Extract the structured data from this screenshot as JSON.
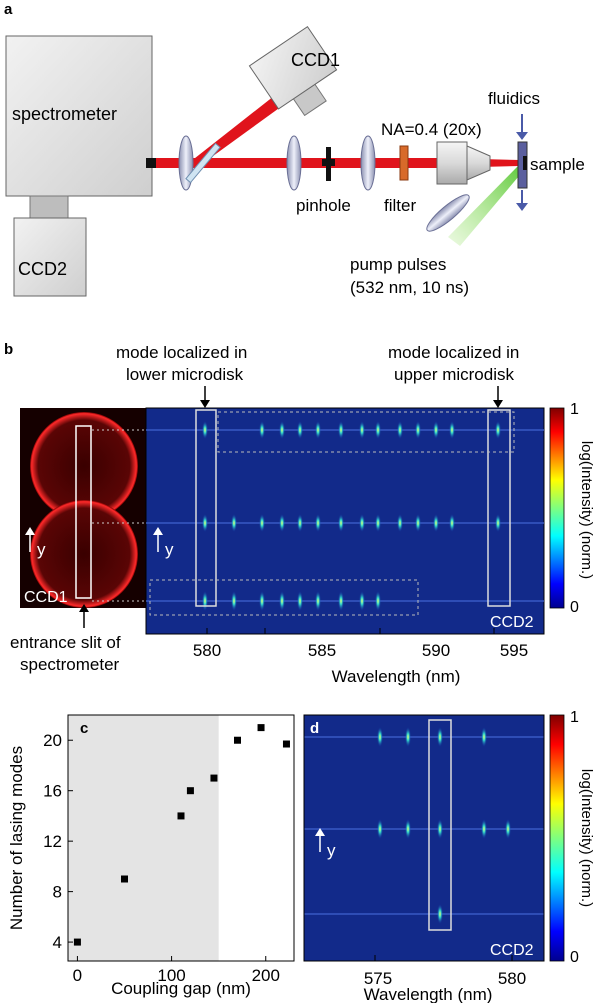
{
  "panel_a": {
    "label": "a",
    "spectrometer": "spectrometer",
    "ccd1": "CCD1",
    "ccd2": "CCD2",
    "fluidics": "fluidics",
    "na": "NA=0.4 (20x)",
    "sample": "sample",
    "pinhole": "pinhole",
    "filter": "filter",
    "pump_line1": "pump pulses",
    "pump_line2": "(532 nm, 10 ns)"
  },
  "panel_b": {
    "label": "b",
    "annot_lower_1": "mode localized in",
    "annot_lower_2": "lower microdisk",
    "annot_upper_1": "mode localized in",
    "annot_upper_2": "upper microdisk",
    "ccd1_label": "CCD1",
    "ccd2_label": "CCD2",
    "y_label": "y",
    "slit_1": "entrance slit of",
    "slit_2": "spectrometer",
    "xlabel": "Wavelength (nm)",
    "xticks": [
      "580",
      "585",
      "590",
      "595"
    ],
    "colorbar_label": "log(Intensity) (norm.)",
    "colorbar_ticks": [
      "1",
      "0"
    ]
  },
  "chart_data": [
    {
      "panel": "c",
      "type": "scatter",
      "xlabel": "Coupling gap (nm)",
      "ylabel": "Number of lasing modes",
      "xticks": [
        "0",
        "100",
        "200"
      ],
      "yticks": [
        "4",
        "8",
        "12",
        "16",
        "20"
      ],
      "xlim": [
        -10,
        230
      ],
      "ylim": [
        2.5,
        22
      ],
      "shaded_region_x": [
        -10,
        150
      ],
      "points": [
        {
          "x": 0,
          "y": 4
        },
        {
          "x": 50,
          "y": 9
        },
        {
          "x": 110,
          "y": 14
        },
        {
          "x": 120,
          "y": 16
        },
        {
          "x": 145,
          "y": 17
        },
        {
          "x": 170,
          "y": 20
        },
        {
          "x": 195,
          "y": 21
        },
        {
          "x": 222,
          "y": 19.7
        }
      ]
    }
  ],
  "panel_c": {
    "label": "c"
  },
  "panel_d": {
    "label": "d",
    "y_label": "y",
    "ccd2_label": "CCD2",
    "xlabel": "Wavelength (nm)",
    "xticks": [
      "575",
      "580"
    ],
    "colorbar_label": "log(Intensity) (norm.)",
    "colorbar_ticks": [
      "1",
      "0"
    ]
  }
}
